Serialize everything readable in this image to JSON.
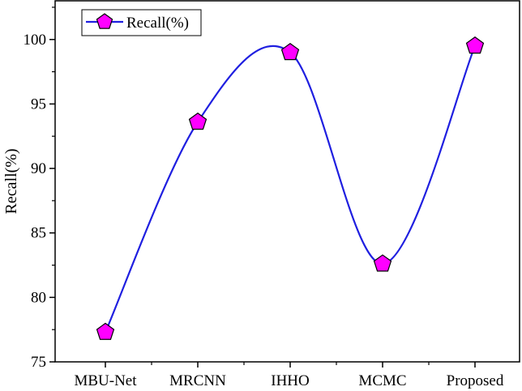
{
  "chart_data": {
    "type": "line",
    "title": "",
    "xlabel": "",
    "ylabel": "Recall(%)",
    "categories": [
      "MBU-Net",
      "MRCNN",
      "IHHO",
      "MCMC",
      "Proposed"
    ],
    "series": [
      {
        "name": "Recall(%)",
        "values": [
          77.3,
          93.6,
          99.0,
          82.6,
          99.5
        ]
      }
    ],
    "ylim": [
      75,
      103
    ],
    "yticks": [
      75,
      80,
      85,
      90,
      95,
      100
    ],
    "grid": false,
    "legend_position": "top-left",
    "smooth": true,
    "line_color": "#1f1fe0",
    "marker": "pentagon",
    "marker_color": "#ff00ff",
    "marker_edge_color": "#000000"
  }
}
